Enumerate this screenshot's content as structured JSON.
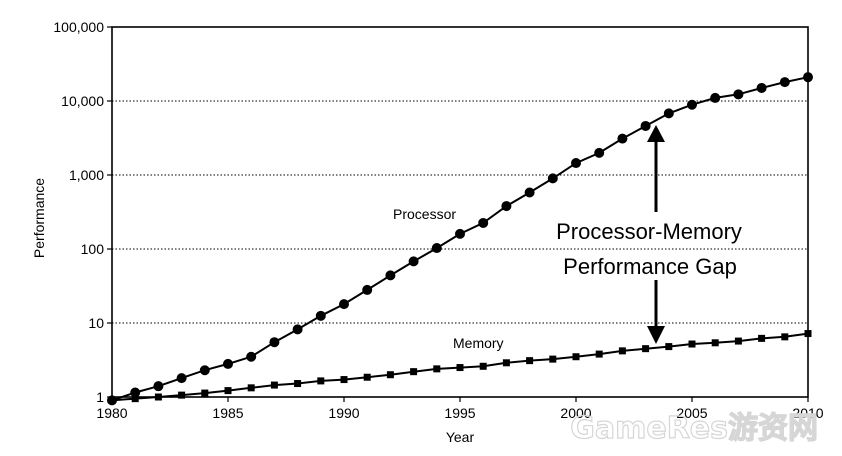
{
  "chart_data": {
    "type": "line",
    "title": "",
    "xlabel": "Year",
    "ylabel": "Performance",
    "y_scale": "log",
    "xlim": [
      1980,
      2010
    ],
    "ylim": [
      1,
      100000
    ],
    "x_ticks": [
      1980,
      1985,
      1990,
      1995,
      2000,
      2005,
      2010
    ],
    "x_tick_labels": [
      "1980",
      "1985",
      "1990",
      "1995",
      "2000",
      "2005",
      "2010"
    ],
    "y_ticks": [
      1,
      10,
      100,
      1000,
      10000,
      100000
    ],
    "y_tick_labels": [
      "1",
      "10",
      "100",
      "1,000",
      "10,000",
      "100,000"
    ],
    "grid": "horizontal-dotted",
    "legend": "none",
    "x": [
      1980,
      1981,
      1982,
      1983,
      1984,
      1985,
      1986,
      1987,
      1988,
      1989,
      1990,
      1991,
      1992,
      1993,
      1994,
      1995,
      1996,
      1997,
      1998,
      1999,
      2000,
      2001,
      2002,
      2003,
      2004,
      2005,
      2006,
      2007,
      2008,
      2009,
      2010
    ],
    "series": [
      {
        "name": "Processor",
        "marker": "circle",
        "color": "#000000",
        "values": [
          0.9,
          1.15,
          1.4,
          1.8,
          2.3,
          2.8,
          3.5,
          5.5,
          8.2,
          12.5,
          18,
          28,
          44,
          68,
          103,
          160,
          225,
          380,
          580,
          900,
          1450,
          1990,
          3100,
          4600,
          6800,
          8900,
          11000,
          12300,
          15000,
          18000,
          21000
        ]
      },
      {
        "name": "Memory",
        "marker": "square",
        "color": "#000000",
        "values": [
          0.9,
          0.95,
          1.0,
          1.06,
          1.13,
          1.22,
          1.33,
          1.45,
          1.52,
          1.65,
          1.72,
          1.85,
          2.0,
          2.2,
          2.4,
          2.5,
          2.6,
          2.9,
          3.1,
          3.25,
          3.5,
          3.8,
          4.2,
          4.5,
          4.8,
          5.2,
          5.4,
          5.7,
          6.2,
          6.5,
          7.2
        ]
      }
    ],
    "annotations": {
      "gap_line1": "Processor-Memory",
      "gap_line2": "Performance Gap"
    },
    "watermark": "GameRes游资网"
  }
}
